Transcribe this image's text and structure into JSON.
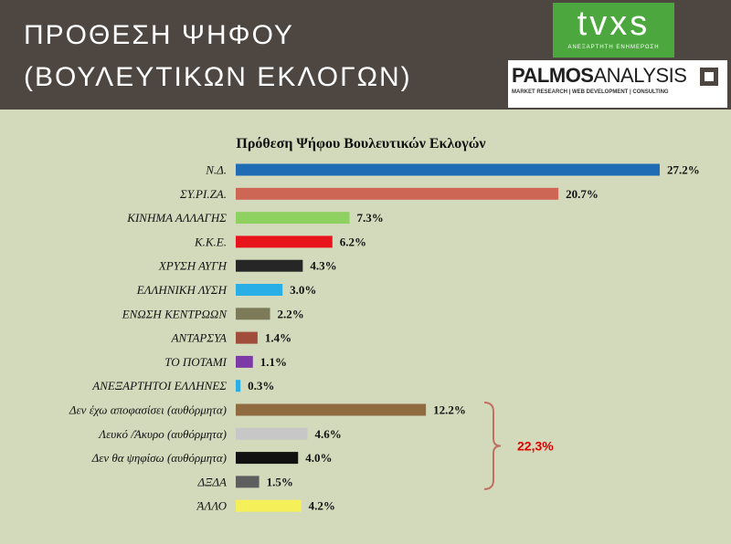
{
  "header": {
    "title_line1": "ΠΡΟΘΕΣΗ ΨΗΦΟΥ",
    "title_line2": "(ΒΟΥΛΕΥΤΙΚΩΝ ΕΚΛΟΓΩΝ)",
    "logo_tvxs": "tvxs",
    "logo_tvxs_tagline": "ΑΝΕΞΑΡΤΗΤΗ ΕΝΗΜΕΡΩΣΗ",
    "logo_palmos_a": "PALMOS",
    "logo_palmos_b": "ANALYSIS",
    "logo_palmos_tagline": "MARKET RESEARCH | WEB DEVELOPMENT | CONSULTING"
  },
  "colors": {
    "header_bg": "#4e4641",
    "chart_bg": "#d3dabc",
    "tvxs_green": "#4ca83e",
    "group_red": "#e00000",
    "bracket": "#c07060"
  },
  "chart_data": {
    "type": "bar",
    "orientation": "horizontal",
    "title": "Πρόθεση Ψήφου Βουλευτικών Εκλογών",
    "categories": [
      "Ν.Δ.",
      "ΣΥ.ΡΙ.ΖΑ.",
      "ΚΙΝΗΜΑ ΑΛΛΑΓΗΣ",
      "Κ.Κ.Ε.",
      "ΧΡΥΣΗ ΑΥΓΗ",
      "ΕΛΛΗΝΙΚΗ ΛΥΣΗ",
      "ΕΝΩΣΗ ΚΕΝΤΡΩΩΝ",
      "ΑΝΤΑΡΣΥΑ",
      "ΤΟ ΠΟΤΑΜΙ",
      "ΑΝΕΞΑΡΤΗΤΟΙ ΕΛΛΗΝΕΣ",
      "Δεν έχω αποφασίσει (αυθόρμητα)",
      "Λευκό /Άκυρο (αυθόρμητα)",
      "Δεν θα ψηφίσω (αυθόρμητα)",
      "ΔΞΔΑ",
      "ΆΛΛΟ"
    ],
    "values": [
      27.2,
      20.7,
      7.3,
      6.2,
      4.3,
      3.0,
      2.2,
      1.4,
      1.1,
      0.3,
      12.2,
      4.6,
      4.0,
      1.5,
      4.2
    ],
    "value_labels": [
      "27.2%",
      "20.7%",
      "7.3%",
      "6.2%",
      "4.3%",
      "3.0%",
      "2.2%",
      "1.4%",
      "1.1%",
      "0.3%",
      "12.2%",
      "4.6%",
      "4.0%",
      "1.5%",
      "4.2%"
    ],
    "bar_colors": [
      "#1f6cb4",
      "#cd6655",
      "#8fd160",
      "#e8141b",
      "#262626",
      "#2aaee6",
      "#7c7a58",
      "#a14d3b",
      "#7b3aa5",
      "#2aaee6",
      "#8f6b3f",
      "#c7c7c7",
      "#111111",
      "#5e5e5e",
      "#f5f05a"
    ],
    "xlim": [
      0,
      30
    ],
    "grid": false,
    "legend": "none",
    "annotations": [
      {
        "text": "22,3%",
        "bracket_from": 10,
        "bracket_to": 13
      }
    ]
  }
}
